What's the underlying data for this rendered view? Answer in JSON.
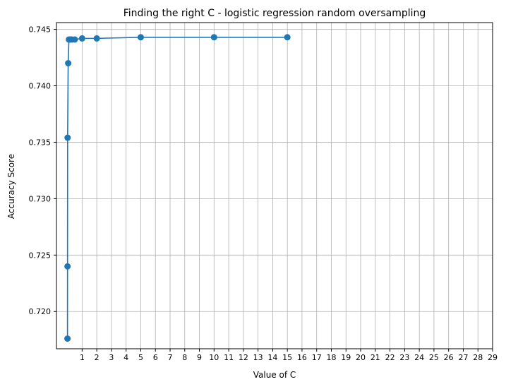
{
  "chart_data": {
    "type": "line",
    "title": "Finding the right C - logistic regression random oversampling",
    "xlabel": "Value of C",
    "ylabel": "Accuracy Score",
    "xlim": [
      -0.75,
      29
    ],
    "ylim": [
      0.7167,
      0.7456
    ],
    "x_ticks": [
      1,
      2,
      3,
      4,
      5,
      6,
      7,
      8,
      9,
      10,
      11,
      12,
      13,
      14,
      15,
      16,
      17,
      18,
      19,
      20,
      21,
      22,
      23,
      24,
      25,
      26,
      27,
      28,
      29
    ],
    "y_ticks": [
      0.72,
      0.725,
      0.73,
      0.735,
      0.74,
      0.745
    ],
    "y_tick_labels": [
      "0.720",
      "0.725",
      "0.730",
      "0.735",
      "0.740",
      "0.745"
    ],
    "grid": true,
    "marker": "circle",
    "series": [
      {
        "color": "#1f77b4",
        "x": [
          0.001,
          0.005,
          0.01,
          0.05,
          0.1,
          0.2,
          0.3,
          0.5,
          1,
          2,
          5,
          10,
          15
        ],
        "y": [
          0.7176,
          0.724,
          0.7354,
          0.742,
          0.7441,
          0.7441,
          0.7441,
          0.7441,
          0.7442,
          0.7442,
          0.7443,
          0.7443,
          0.7443
        ]
      }
    ]
  }
}
